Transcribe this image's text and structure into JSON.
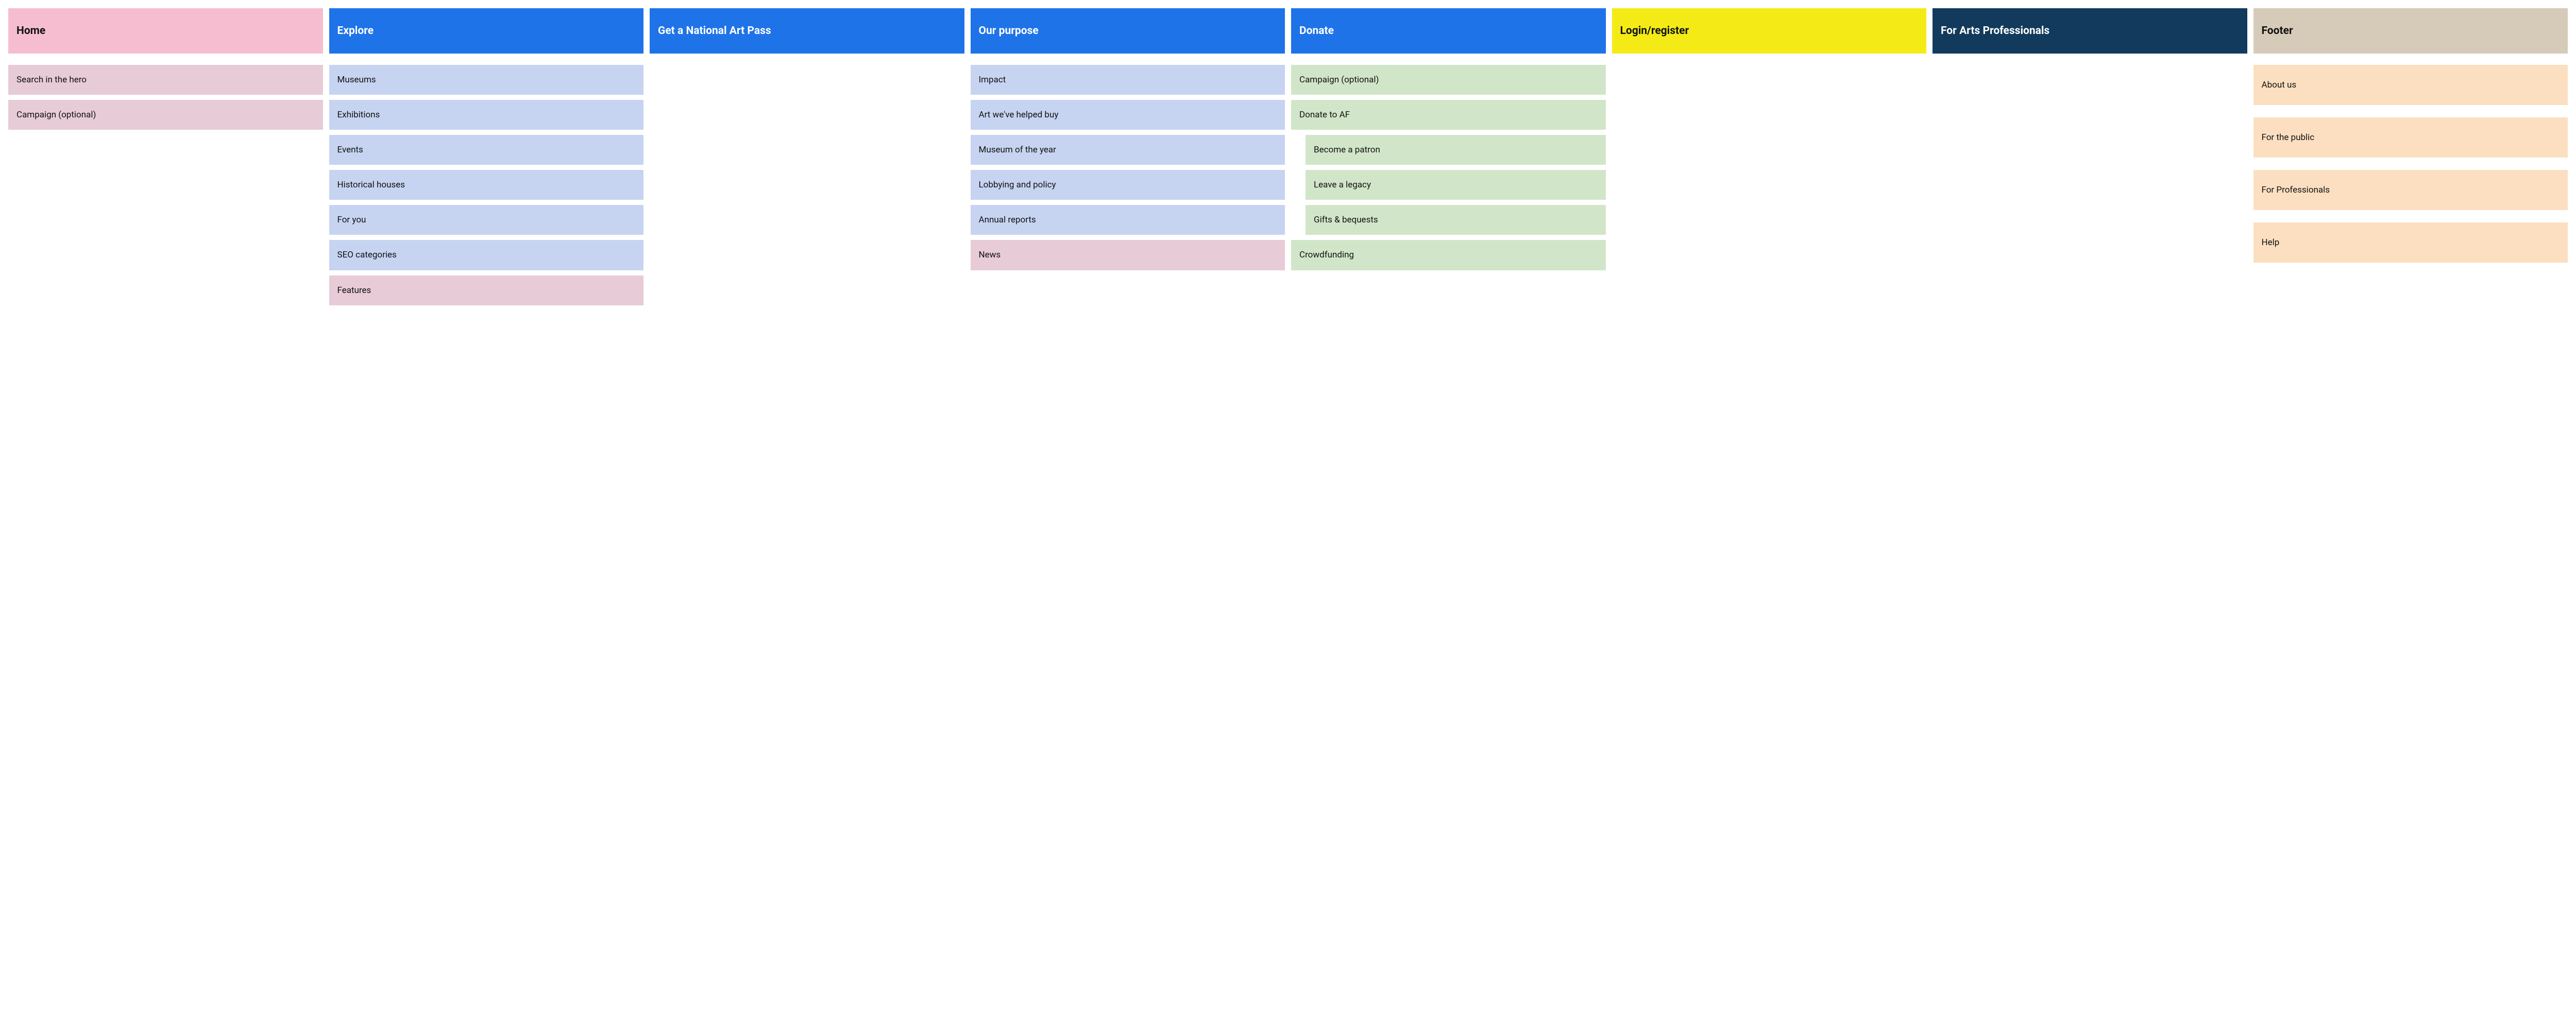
{
  "colors": {
    "header_pink": "#f6bdd1",
    "header_blue": "#1e73e8",
    "header_yellow": "#f4eb16",
    "header_navy": "#123a5c",
    "header_beige": "#d6cbb8",
    "item_pink": "#e7cbd7",
    "item_blue": "#c6d4f1",
    "item_green": "#d1e6c8",
    "item_peach": "#fbdfc0",
    "text_dark": "#111111",
    "text_white": "#ffffff"
  },
  "columns": [
    {
      "id": "home",
      "label": "Home",
      "header_bg": "header_pink",
      "header_fg": "text_dark",
      "items": [
        {
          "label": "Search in the hero",
          "bg": "item_pink"
        },
        {
          "label": "Campaign (optional)",
          "bg": "item_pink"
        }
      ]
    },
    {
      "id": "explore",
      "label": "Explore",
      "header_bg": "header_blue",
      "header_fg": "text_white",
      "items": [
        {
          "label": "Museums",
          "bg": "item_blue"
        },
        {
          "label": "Exhibitions",
          "bg": "item_blue"
        },
        {
          "label": "Events",
          "bg": "item_blue"
        },
        {
          "label": "Historical houses",
          "bg": "item_blue"
        },
        {
          "label": "For you",
          "bg": "item_blue"
        },
        {
          "label": "SEO categories",
          "bg": "item_blue"
        },
        {
          "label": "Features",
          "bg": "item_pink"
        }
      ]
    },
    {
      "id": "nap",
      "label": "Get a National Art Pass",
      "header_bg": "header_blue",
      "header_fg": "text_white",
      "items": []
    },
    {
      "id": "purpose",
      "label": "Our purpose",
      "header_bg": "header_blue",
      "header_fg": "text_white",
      "items": [
        {
          "label": "Impact",
          "bg": "item_blue"
        },
        {
          "label": "Art we've helped buy",
          "bg": "item_blue"
        },
        {
          "label": "Museum of the year",
          "bg": "item_blue"
        },
        {
          "label": "Lobbying and policy",
          "bg": "item_blue"
        },
        {
          "label": "Annual reports",
          "bg": "item_blue"
        },
        {
          "label": "News",
          "bg": "item_pink"
        }
      ]
    },
    {
      "id": "donate",
      "label": "Donate",
      "header_bg": "header_blue",
      "header_fg": "text_white",
      "items": [
        {
          "label": "Campaign (optional)",
          "bg": "item_green"
        },
        {
          "label": "Donate to AF",
          "bg": "item_green"
        },
        {
          "label": "Become a patron",
          "bg": "item_green",
          "indent": true
        },
        {
          "label": "Leave a legacy",
          "bg": "item_green",
          "indent": true
        },
        {
          "label": "Gifts & bequests",
          "bg": "item_green",
          "indent": true
        },
        {
          "label": "Crowdfunding",
          "bg": "item_green"
        }
      ]
    },
    {
      "id": "login",
      "label": "Login/register",
      "header_bg": "header_yellow",
      "header_fg": "text_dark",
      "items": []
    },
    {
      "id": "arts-pro",
      "label": "For Arts Professionals",
      "header_bg": "header_navy",
      "header_fg": "text_white",
      "items": []
    },
    {
      "id": "footer",
      "label": "Footer",
      "header_bg": "header_beige",
      "header_fg": "text_dark",
      "footer_style": true,
      "items": [
        {
          "label": "About us",
          "bg": "item_peach"
        },
        {
          "label": "For the public",
          "bg": "item_peach"
        },
        {
          "label": "For Professionals",
          "bg": "item_peach"
        },
        {
          "label": "Help",
          "bg": "item_peach"
        }
      ]
    }
  ]
}
